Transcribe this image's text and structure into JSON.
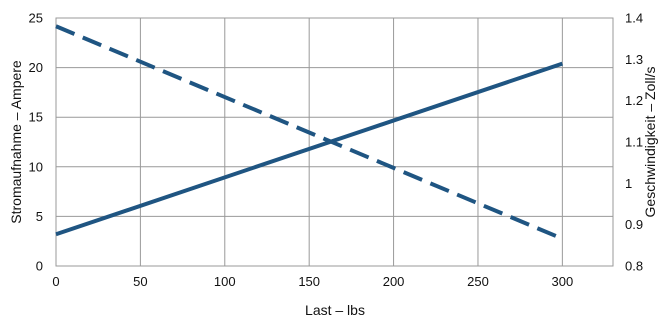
{
  "chart_data": {
    "type": "line",
    "xlabel": "Last – lbs",
    "ylabel_left": "Stromaufnahme – Ampere",
    "ylabel_right": "Geschwindigkeit – Zoll/s",
    "xlim": [
      0,
      330
    ],
    "xticks": [
      0,
      50,
      100,
      150,
      200,
      250,
      300
    ],
    "ylim_left": [
      0,
      25
    ],
    "yticks_left": [
      0,
      5,
      10,
      15,
      20,
      25
    ],
    "ylim_right": [
      0.8,
      1.4
    ],
    "yticks_right": [
      "0.8",
      "0.9",
      "1",
      "1.1",
      "1.2",
      "1.3",
      "1.4"
    ],
    "grid": true,
    "series": [
      {
        "axis": "left",
        "style": "solid",
        "color": "#1f5582",
        "x": [
          0,
          300
        ],
        "y": [
          3.2,
          20.4
        ]
      },
      {
        "axis": "right",
        "style": "dashed",
        "color": "#1f5582",
        "x": [
          0,
          300
        ],
        "y": [
          1.38,
          0.866
        ]
      }
    ]
  }
}
